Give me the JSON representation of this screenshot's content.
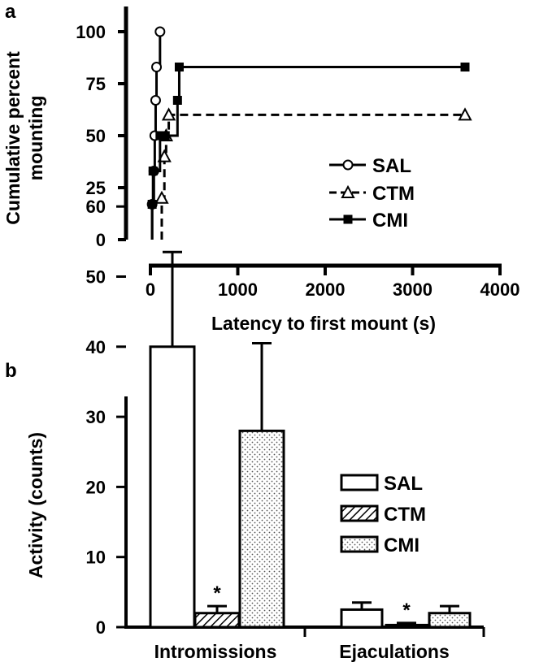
{
  "colors": {
    "ink": "#000000",
    "background": "#ffffff",
    "stipple": "#777777"
  },
  "chart_data": [
    {
      "panel": "a",
      "type": "line",
      "step": true,
      "xlabel": "Latency to first mount (s)",
      "ylabel": [
        "Cumulative percent",
        "mounting"
      ],
      "xlim": [
        0,
        4000
      ],
      "ylim": [
        0,
        100
      ],
      "xticks": [
        0,
        1000,
        2000,
        3000,
        4000
      ],
      "yticks": [
        0,
        25,
        50,
        75,
        100
      ],
      "grid": false,
      "legend_position": "right",
      "series": [
        {
          "name": "SAL",
          "marker": "open-circle",
          "line": "solid",
          "x": [
            20,
            40,
            50,
            60,
            70,
            110
          ],
          "y": [
            17,
            33,
            50,
            67,
            83,
            100
          ]
        },
        {
          "name": "CTM",
          "marker": "open-triangle",
          "line": "dashed",
          "x": [
            130,
            160,
            180,
            210,
            3600
          ],
          "y": [
            20,
            40,
            50,
            60,
            60
          ]
        },
        {
          "name": "CMI",
          "marker": "filled-square",
          "line": "solid",
          "x": [
            20,
            30,
            110,
            170,
            310,
            330,
            3600
          ],
          "y": [
            17,
            33,
            50,
            50,
            67,
            83,
            83
          ]
        }
      ]
    },
    {
      "panel": "b",
      "type": "bar",
      "categories": [
        "Intromissions",
        "Ejaculations"
      ],
      "ylabel": "Activity (counts)",
      "ylim": [
        0,
        60
      ],
      "yticks": [
        0,
        10,
        20,
        30,
        40,
        50,
        60
      ],
      "grid": false,
      "legend_position": "right",
      "series": [
        {
          "name": "SAL",
          "fill": "open",
          "values": [
            40,
            2.5
          ],
          "errors": [
            13.5,
            1
          ]
        },
        {
          "name": "CTM",
          "fill": "hatched",
          "values": [
            2,
            0.3
          ],
          "errors": [
            1,
            0.3
          ]
        },
        {
          "name": "CMI",
          "fill": "stippled",
          "values": [
            28,
            2
          ],
          "errors": [
            12.5,
            1
          ]
        }
      ],
      "annotations": [
        {
          "text": "*",
          "category": "Intromissions",
          "series": "CTM"
        },
        {
          "text": "*",
          "category": "Ejaculations",
          "series": "CTM"
        }
      ]
    }
  ]
}
